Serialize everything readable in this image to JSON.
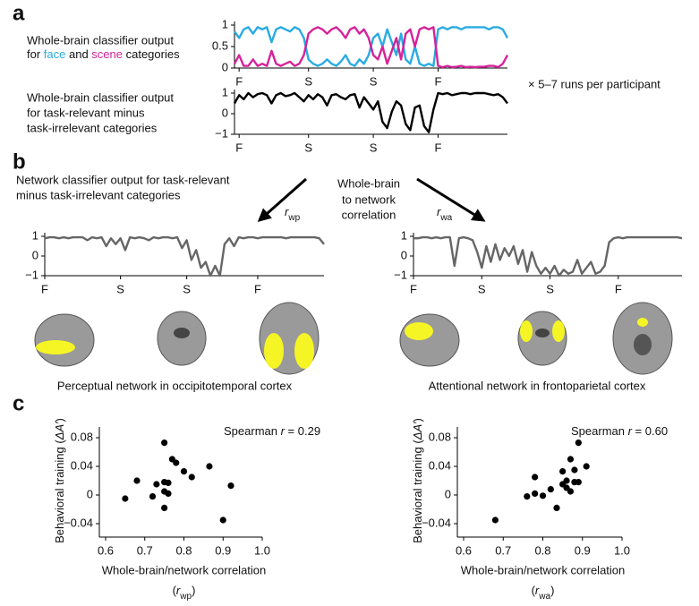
{
  "panel_labels": [
    "a",
    "b",
    "c"
  ],
  "runs_note": "× 5–7 runs per participant",
  "correlation_note": [
    "Whole-brain",
    "to network",
    "correlation"
  ],
  "chart_data": [
    {
      "type": "line",
      "description": [
        "Whole-brain classifier output",
        [
          "for ",
          {
            "text": "face",
            "color": "#29abe2"
          },
          " and ",
          {
            "text": "scene",
            "color": "#d4239a"
          },
          " categories"
        ]
      ],
      "xlim": [
        0,
        59
      ],
      "ylim": [
        0,
        1
      ],
      "yticks": [
        0,
        0.5,
        1
      ],
      "xticks": [
        {
          "value": 1,
          "label": "F"
        },
        {
          "value": 16,
          "label": "S"
        },
        {
          "value": 30,
          "label": "S"
        },
        {
          "value": 44,
          "label": "F"
        }
      ],
      "xtick_colors": [
        "#29abe2",
        "#d4239a",
        "#d4239a",
        "#29abe2"
      ],
      "series": [
        {
          "color": "#29abe2",
          "values": [
            0.85,
            0.7,
            0.9,
            0.95,
            0.8,
            0.95,
            0.9,
            0.95,
            0.6,
            0.9,
            0.95,
            0.9,
            0.85,
            0.95,
            0.9,
            0.7,
            0.2,
            0.1,
            0.05,
            0.1,
            0.2,
            0.1,
            0.05,
            0.15,
            0.3,
            0.1,
            0.05,
            0.2,
            0.1,
            0.3,
            0.7,
            0.8,
            0.5,
            0.9,
            0.6,
            0.3,
            0.8,
            0.2,
            0.1,
            0.5,
            0.1,
            0.05,
            0.1,
            0.05,
            0.9,
            0.95,
            0.9,
            0.95,
            0.95,
            0.9,
            0.95,
            0.95,
            0.95,
            0.95,
            0.95,
            0.9,
            0.95,
            0.95,
            0.9,
            0.7
          ]
        },
        {
          "color": "#d4239a",
          "values": [
            0.1,
            0.3,
            0.05,
            0.05,
            0.2,
            0.05,
            0.1,
            0.05,
            0.4,
            0.1,
            0.05,
            0.1,
            0.15,
            0.05,
            0.1,
            0.3,
            0.8,
            0.9,
            0.95,
            0.9,
            0.8,
            0.9,
            0.95,
            0.85,
            0.7,
            0.9,
            0.95,
            0.8,
            0.9,
            0.7,
            0.3,
            0.2,
            0.5,
            0.1,
            0.4,
            0.7,
            0.2,
            0.8,
            0.9,
            0.5,
            0.9,
            0.95,
            0.9,
            0.95,
            0.05,
            0.02,
            0.05,
            0.02,
            0.03,
            0.05,
            0.02,
            0.03,
            0.02,
            0.03,
            0.03,
            0.05,
            0.05,
            0.02,
            0.1,
            0.3
          ]
        }
      ]
    },
    {
      "type": "line",
      "description": [
        "Whole-brain classifier output",
        "for task-relevant minus",
        "task-irrelevant categories"
      ],
      "xlim": [
        0,
        59
      ],
      "ylim": [
        -1,
        1
      ],
      "yticks": [
        {
          "value": -1,
          "label": "−1"
        },
        0,
        1
      ],
      "xticks": [
        {
          "value": 1,
          "label": "F"
        },
        {
          "value": 16,
          "label": "S"
        },
        {
          "value": 30,
          "label": "S"
        },
        {
          "value": 44,
          "label": "F"
        }
      ],
      "xtick_colors": [
        "#29abe2",
        "#d4239a",
        "#d4239a",
        "#29abe2"
      ],
      "series": [
        {
          "color": "#000000",
          "values": [
            0.5,
            0.9,
            0.7,
            1,
            0.8,
            0.95,
            1,
            0.9,
            0.5,
            0.9,
            1,
            0.85,
            0.9,
            1,
            0.8,
            0.6,
            0.9,
            0.7,
            0.95,
            0.8,
            0.4,
            0.9,
            0.95,
            0.8,
            0.7,
            0.9,
            0.95,
            0.3,
            0.8,
            0.5,
            0.2,
            0.6,
            -0.4,
            -0.7,
            0.1,
            0.6,
            0.4,
            -0.5,
            -0.8,
            0.3,
            0.4,
            -0.6,
            -0.9,
            0.2,
            1,
            0.95,
            1,
            0.9,
            0.95,
            1,
            1,
            0.95,
            1,
            1,
            1,
            0.95,
            0.9,
            0.95,
            0.8,
            0.5
          ]
        }
      ]
    },
    {
      "type": "line",
      "description": [
        "Network classifier output for task-relevant",
        "minus task-irrelevant categories"
      ],
      "arrow_label": [
        {
          "text": "r",
          "italic": true
        },
        {
          "text": "wp",
          "sub": true
        }
      ],
      "caption": "Perceptual network in occipitotemporal cortex",
      "xlim": [
        0,
        59
      ],
      "ylim": [
        -1,
        1
      ],
      "yticks": [
        {
          "value": -1,
          "label": "−1"
        },
        0,
        1
      ],
      "xticks": [
        {
          "value": 0,
          "label": "F"
        },
        {
          "value": 16,
          "label": "S"
        },
        {
          "value": 30,
          "label": "S"
        },
        {
          "value": 45,
          "label": "F"
        }
      ],
      "series": [
        {
          "color": "#666666",
          "values": [
            0.9,
            0.95,
            0.95,
            0.9,
            0.95,
            0.9,
            0.95,
            0.95,
            0.95,
            0.8,
            0.95,
            0.9,
            0.95,
            0.5,
            0.9,
            0.6,
            0.9,
            0.3,
            0.95,
            0.9,
            0.95,
            0.9,
            0.8,
            0.95,
            0.9,
            0.95,
            0.95,
            0.9,
            0.95,
            0.4,
            0.8,
            -0.2,
            0.3,
            -0.6,
            -0.3,
            -1,
            -0.5,
            -1,
            0.6,
            0.9,
            0.5,
            0.95,
            0.9,
            0.95,
            0.95,
            0.9,
            0.95,
            0.95,
            0.95,
            0.95,
            0.95,
            0.9,
            0.95,
            0.95,
            0.95,
            0.95,
            0.95,
            0.95,
            0.9,
            0.6
          ]
        }
      ]
    },
    {
      "type": "line",
      "arrow_label": [
        {
          "text": "r",
          "italic": true
        },
        {
          "text": "wa",
          "sub": true
        }
      ],
      "caption": "Attentional network in frontoparietal cortex",
      "xlim": [
        0,
        59
      ],
      "ylim": [
        -1,
        1
      ],
      "yticks": [
        {
          "value": -1,
          "label": "−1"
        },
        0,
        1
      ],
      "xticks": [
        {
          "value": 0,
          "label": "F"
        },
        {
          "value": 15,
          "label": "S"
        },
        {
          "value": 30,
          "label": "S"
        },
        {
          "value": 45,
          "label": "F"
        }
      ],
      "series": [
        {
          "color": "#666666",
          "values": [
            0.9,
            0.9,
            0.95,
            0.95,
            0.9,
            0.95,
            0.9,
            0.95,
            0.95,
            -0.5,
            0.9,
            0.95,
            0.9,
            0.8,
            0.2,
            -0.6,
            0.5,
            -0.3,
            0.6,
            -0.2,
            0.4,
            0,
            0.5,
            -0.4,
            0.3,
            -0.8,
            0.2,
            -0.5,
            -0.9,
            -0.6,
            -0.9,
            -0.5,
            -1,
            -0.7,
            -0.9,
            -0.8,
            -0.2,
            -0.9,
            -0.6,
            -0.3,
            -0.9,
            -0.8,
            -0.5,
            0.7,
            0.9,
            0.95,
            0.9,
            0.95,
            0.95,
            0.95,
            0.95,
            0.95,
            0.95,
            0.95,
            0.95,
            0.95,
            0.95,
            0.95,
            0.95,
            0.9
          ]
        }
      ]
    },
    {
      "type": "scatter",
      "annotation": [
        "Spearman ",
        {
          "text": "r",
          "italic": true
        },
        " = 0.29"
      ],
      "xlabel": [
        "Whole-brain/network correlation",
        [
          "(",
          {
            "text": "r",
            "italic": true
          },
          {
            "text": "wp",
            "sub": true
          },
          ")"
        ]
      ],
      "ylabel": [
        "Behavioral training (",
        {
          "text": "ΔA′",
          "italic": true
        },
        ")"
      ],
      "color": "#000000",
      "xlim": [
        0.6,
        1.0
      ],
      "ylim": [
        -0.05,
        0.09
      ],
      "xticks": [
        0.6,
        0.7,
        0.8,
        0.9,
        {
          "value": 1,
          "label": "1.0"
        }
      ],
      "yticks": [
        {
          "value": -0.04,
          "label": "−0.04"
        },
        0,
        0.04,
        0.08
      ],
      "x": [
        0.65,
        0.68,
        0.72,
        0.73,
        0.75,
        0.75,
        0.75,
        0.75,
        0.76,
        0.76,
        0.77,
        0.78,
        0.8,
        0.82,
        0.865,
        0.9,
        0.92
      ],
      "values": [
        -0.005,
        0.02,
        -0.002,
        0.015,
        0.073,
        0.018,
        0.005,
        -0.018,
        0.002,
        0.017,
        0.05,
        0.045,
        0.033,
        0.025,
        0.04,
        -0.035,
        0.013
      ]
    },
    {
      "type": "scatter",
      "annotation": [
        "Spearman ",
        {
          "text": "r",
          "italic": true
        },
        " = 0.60"
      ],
      "xlabel": [
        "Whole-brain/network correlation",
        [
          "(",
          {
            "text": "r",
            "italic": true
          },
          {
            "text": "wa",
            "sub": true
          },
          ")"
        ]
      ],
      "ylabel": [
        "Behavioral training (",
        {
          "text": "ΔA′",
          "italic": true
        },
        ")"
      ],
      "color": "#000000",
      "xlim": [
        0.6,
        1.0
      ],
      "ylim": [
        -0.05,
        0.09
      ],
      "xticks": [
        0.6,
        0.7,
        0.8,
        0.9,
        {
          "value": 1,
          "label": "1.0"
        }
      ],
      "yticks": [
        {
          "value": -0.04,
          "label": "−0.04"
        },
        0,
        0.04,
        0.08
      ],
      "x": [
        0.68,
        0.76,
        0.78,
        0.78,
        0.8,
        0.82,
        0.835,
        0.85,
        0.85,
        0.86,
        0.86,
        0.87,
        0.87,
        0.88,
        0.88,
        0.89,
        0.89,
        0.91
      ],
      "values": [
        -0.035,
        -0.002,
        0.025,
        0.002,
        -0.001,
        0.008,
        -0.018,
        0.033,
        0.015,
        0.01,
        0.02,
        0.05,
        0.005,
        0.018,
        0.035,
        0.073,
        0.018,
        0.04
      ]
    }
  ]
}
